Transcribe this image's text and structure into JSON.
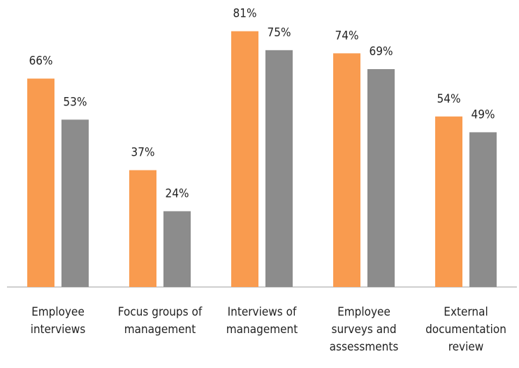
{
  "chart_data": {
    "type": "bar",
    "categories": [
      [
        "Employee",
        "interviews"
      ],
      [
        "Focus groups of",
        "management"
      ],
      [
        "Interviews of",
        "management"
      ],
      [
        "Employee",
        "surveys and",
        "assessments"
      ],
      [
        "External",
        "documentation",
        "review"
      ]
    ],
    "series": [
      {
        "color": "#f99b4f",
        "values": [
          66,
          37,
          81,
          74,
          54
        ],
        "value_labels": [
          "66%",
          "37%",
          "81%",
          "74%",
          "54%"
        ]
      },
      {
        "color": "#8c8c8c",
        "values": [
          53,
          24,
          75,
          69,
          49
        ],
        "value_labels": [
          "53%",
          "24%",
          "75%",
          "69%",
          "49%"
        ]
      }
    ],
    "ylim": [
      0,
      90
    ]
  }
}
